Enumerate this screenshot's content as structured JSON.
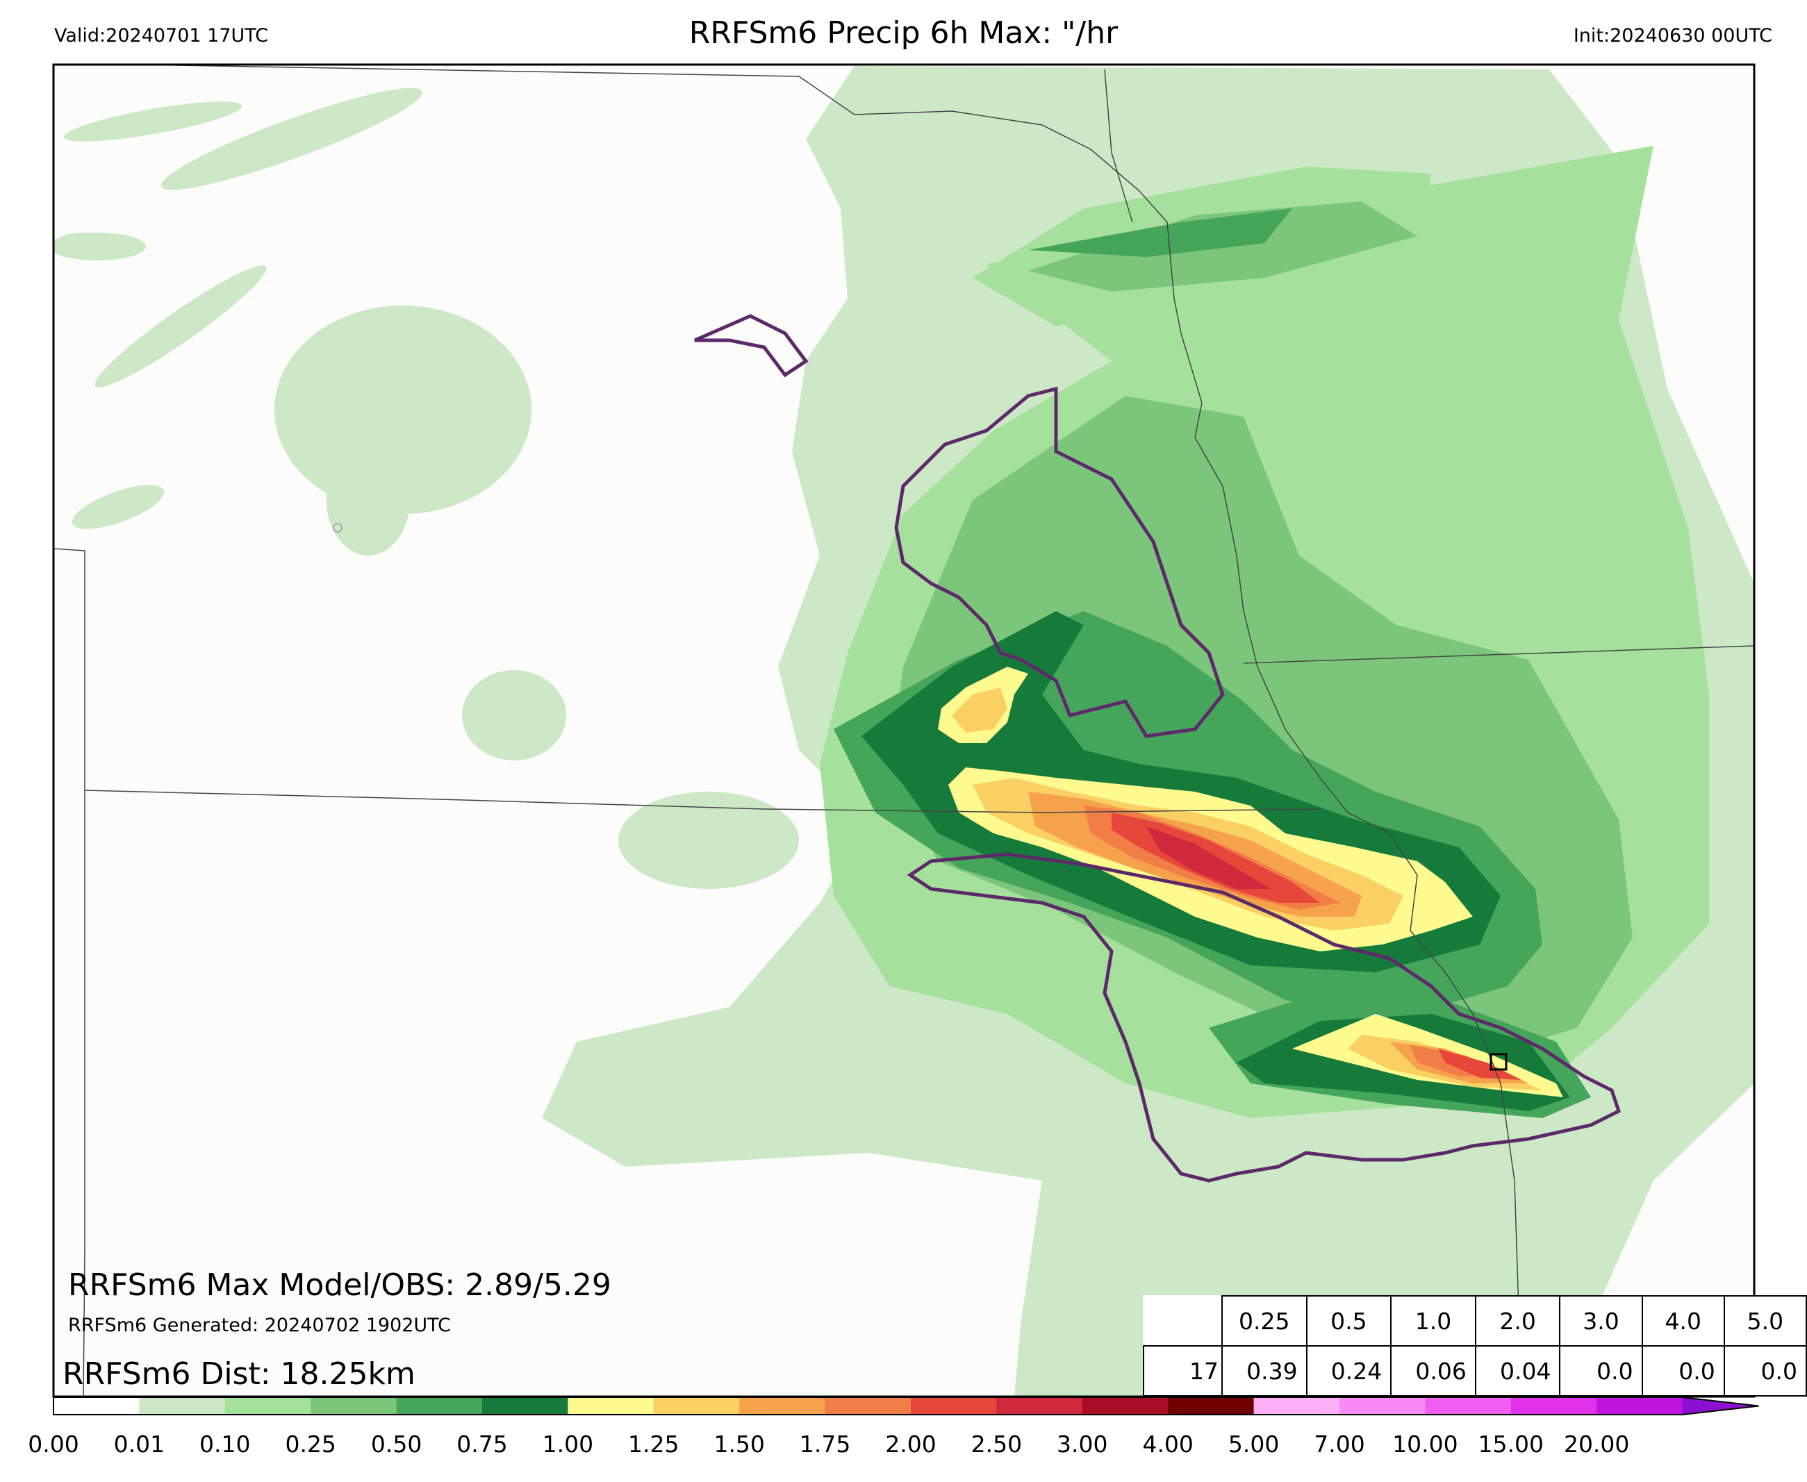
{
  "header": {
    "valid": "Valid:20240701 17UTC",
    "title": "RRFSm6 Precip 6h Max: \"/hr",
    "init": "Init:20240630 00UTC"
  },
  "stats": {
    "max_line": "RRFSm6 Max Model/OBS: 2.89/5.29",
    "generated_line": "RRFSm6 Generated: 20240702 1902UTC",
    "dist_line": "RRFSm6 Dist: 18.25km"
  },
  "table": {
    "thresholds": [
      "0.25",
      "0.5",
      "1.0",
      "2.0",
      "3.0",
      "4.0",
      "5.0"
    ],
    "row_label": "17",
    "values": [
      "0.39",
      "0.24",
      "0.06",
      "0.04",
      "0.0",
      "0.0",
      "0.0"
    ]
  },
  "colorbar": {
    "ticks": [
      "0.00",
      "0.01",
      "0.10",
      "0.25",
      "0.50",
      "0.75",
      "1.00",
      "1.25",
      "1.50",
      "1.75",
      "2.00",
      "2.50",
      "3.00",
      "4.00",
      "5.00",
      "7.00",
      "10.00",
      "15.00",
      "20.00"
    ],
    "colors": [
      "#ffffff",
      "#cde8c6",
      "#a6e09d",
      "#7bc67a",
      "#45a55b",
      "#167a3a",
      "#fdfa90",
      "#f9d061",
      "#f6a24c",
      "#f17e47",
      "#e7473a",
      "#d0283c",
      "#a80d26",
      "#6e0000",
      "#fdb0f5",
      "#f78af3",
      "#f05ef1",
      "#e030e8",
      "#c015df",
      "#8b10cf"
    ]
  }
}
